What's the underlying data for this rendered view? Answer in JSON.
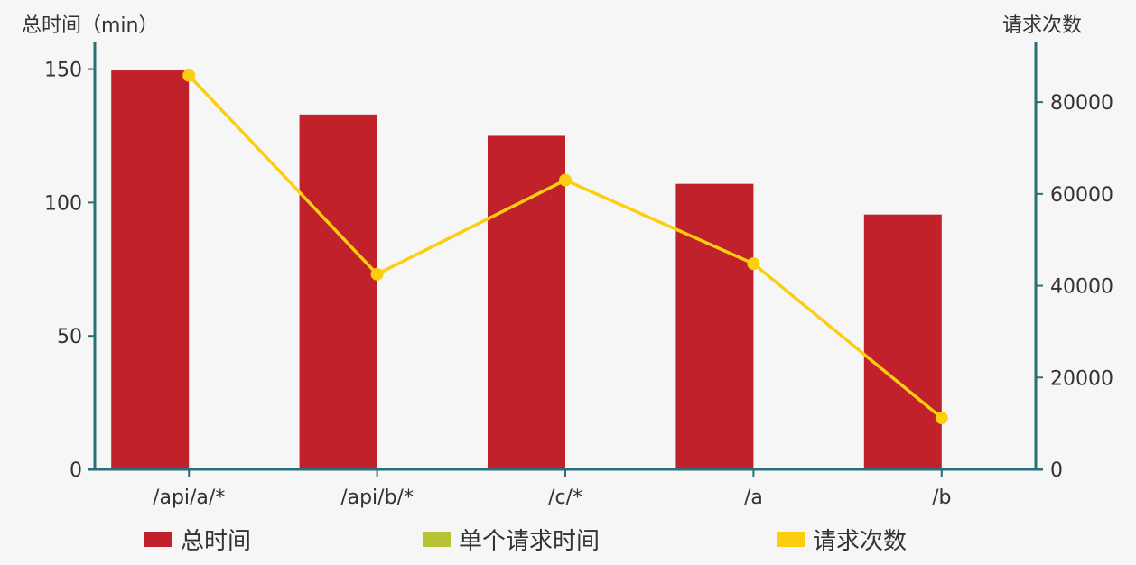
{
  "chart_data": {
    "type": "bar",
    "categories": [
      "/api/a/*",
      "/api/b/*",
      "/c/*",
      "/a",
      "/b"
    ],
    "y_left_label": "总时间（min）",
    "y_right_label": "请求次数",
    "y_left_lim": [
      0,
      160
    ],
    "y_left_ticks": [
      0,
      50,
      100,
      150
    ],
    "y_right_lim": [
      0,
      93000
    ],
    "y_right_ticks": [
      0,
      20000,
      40000,
      60000,
      80000
    ],
    "grid": false,
    "legend_position": "bottom",
    "series": [
      {
        "name": "总时间",
        "type": "bar",
        "axis": "left",
        "color": "#c0212b",
        "values": [
          149.5,
          133,
          125,
          107,
          95.5
        ]
      },
      {
        "name": "单个请求时间",
        "type": "bar",
        "axis": "left",
        "color": "#b5c334",
        "values": [
          0.1,
          0.2,
          0.1,
          0.15,
          0.5
        ]
      },
      {
        "name": "请求次数",
        "type": "line",
        "axis": "right",
        "color": "#fcce10",
        "values": [
          85800,
          42500,
          63000,
          44800,
          11200
        ]
      }
    ]
  }
}
